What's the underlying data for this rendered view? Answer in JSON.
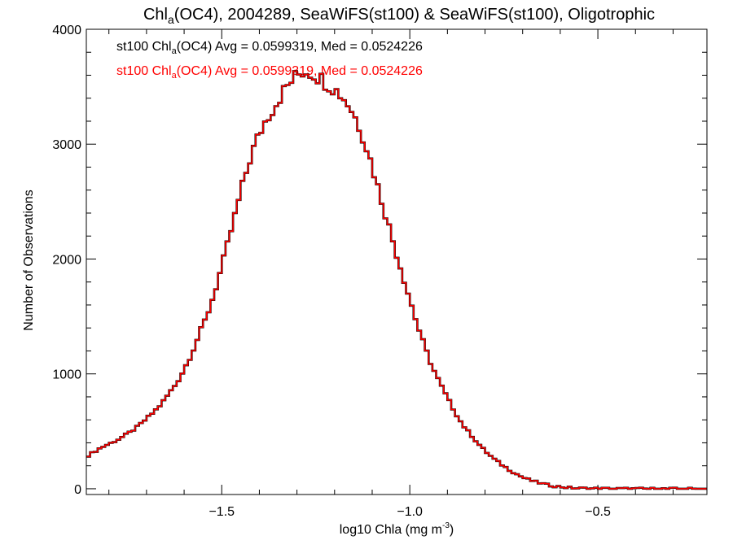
{
  "title": {
    "prefix": "Chl",
    "sub": "a",
    "rest": "(OC4), 2004289, SeaWiFS(st100) & SeaWiFS(st100), Oligotrophic"
  },
  "annotations": [
    {
      "prefix": "st100 Chl",
      "sub": "a",
      "rest": "(OC4) Avg = 0.0599319, Med = 0.0524226",
      "color": "#000000"
    },
    {
      "prefix": "st100 Chl",
      "sub": "a",
      "rest": "(OC4) Avg = 0.0599319, Med = 0.0524226",
      "color": "#ff0000"
    }
  ],
  "xlabel": {
    "text": "log10 Chla (mg m",
    "sup": "-3",
    "close": ")"
  },
  "ylabel": "Number of Observations",
  "colors": {
    "series_black": "#000000",
    "series_red": "#ff0000",
    "axis": "#000000"
  },
  "chart_data": {
    "type": "histogram-step",
    "xlim": [
      -1.86,
      -0.21
    ],
    "ylim": [
      -50,
      4000
    ],
    "xticks": [
      -1.5,
      -1.0,
      -0.5
    ],
    "xtick_labels": [
      "−1.5",
      "−1.0",
      "−0.5"
    ],
    "yticks": [
      0,
      1000,
      2000,
      3000,
      4000
    ],
    "ytick_labels": [
      "0",
      "1000",
      "2000",
      "3000",
      "4000"
    ],
    "bin_width": 0.01,
    "series": [
      {
        "name": "st100 Chla(OC4)",
        "color": "#ff0000",
        "points": [
          [
            -1.86,
            280
          ],
          [
            -1.84,
            320
          ],
          [
            -1.82,
            360
          ],
          [
            -1.8,
            390
          ],
          [
            -1.78,
            420
          ],
          [
            -1.76,
            460
          ],
          [
            -1.74,
            500
          ],
          [
            -1.72,
            550
          ],
          [
            -1.7,
            610
          ],
          [
            -1.68,
            670
          ],
          [
            -1.66,
            740
          ],
          [
            -1.64,
            830
          ],
          [
            -1.62,
            920
          ],
          [
            -1.6,
            1040
          ],
          [
            -1.58,
            1180
          ],
          [
            -1.56,
            1340
          ],
          [
            -1.54,
            1500
          ],
          [
            -1.52,
            1700
          ],
          [
            -1.5,
            1930
          ],
          [
            -1.48,
            2180
          ],
          [
            -1.46,
            2440
          ],
          [
            -1.44,
            2700
          ],
          [
            -1.42,
            2920
          ],
          [
            -1.4,
            3090
          ],
          [
            -1.38,
            3230
          ],
          [
            -1.36,
            3330
          ],
          [
            -1.34,
            3440
          ],
          [
            -1.32,
            3530
          ],
          [
            -1.3,
            3600
          ],
          [
            -1.28,
            3640
          ],
          [
            -1.26,
            3620
          ],
          [
            -1.24,
            3580
          ],
          [
            -1.22,
            3530
          ],
          [
            -1.2,
            3480
          ],
          [
            -1.18,
            3420
          ],
          [
            -1.16,
            3330
          ],
          [
            -1.14,
            3200
          ],
          [
            -1.12,
            3030
          ],
          [
            -1.1,
            2810
          ],
          [
            -1.08,
            2570
          ],
          [
            -1.06,
            2340
          ],
          [
            -1.04,
            2100
          ],
          [
            -1.02,
            1880
          ],
          [
            -1.0,
            1650
          ],
          [
            -0.98,
            1430
          ],
          [
            -0.96,
            1230
          ],
          [
            -0.94,
            1060
          ],
          [
            -0.92,
            920
          ],
          [
            -0.9,
            790
          ],
          [
            -0.88,
            670
          ],
          [
            -0.86,
            560
          ],
          [
            -0.84,
            480
          ],
          [
            -0.82,
            400
          ],
          [
            -0.8,
            330
          ],
          [
            -0.78,
            270
          ],
          [
            -0.76,
            220
          ],
          [
            -0.74,
            175
          ],
          [
            -0.72,
            135
          ],
          [
            -0.7,
            100
          ],
          [
            -0.68,
            75
          ],
          [
            -0.66,
            55
          ],
          [
            -0.64,
            38
          ],
          [
            -0.62,
            25
          ],
          [
            -0.6,
            17
          ],
          [
            -0.58,
            10
          ],
          [
            -0.56,
            6
          ],
          [
            -0.54,
            4
          ],
          [
            -0.52,
            3
          ],
          [
            -0.5,
            2
          ],
          [
            -0.45,
            1
          ],
          [
            -0.4,
            0
          ],
          [
            -0.21,
            0
          ]
        ]
      }
    ]
  }
}
